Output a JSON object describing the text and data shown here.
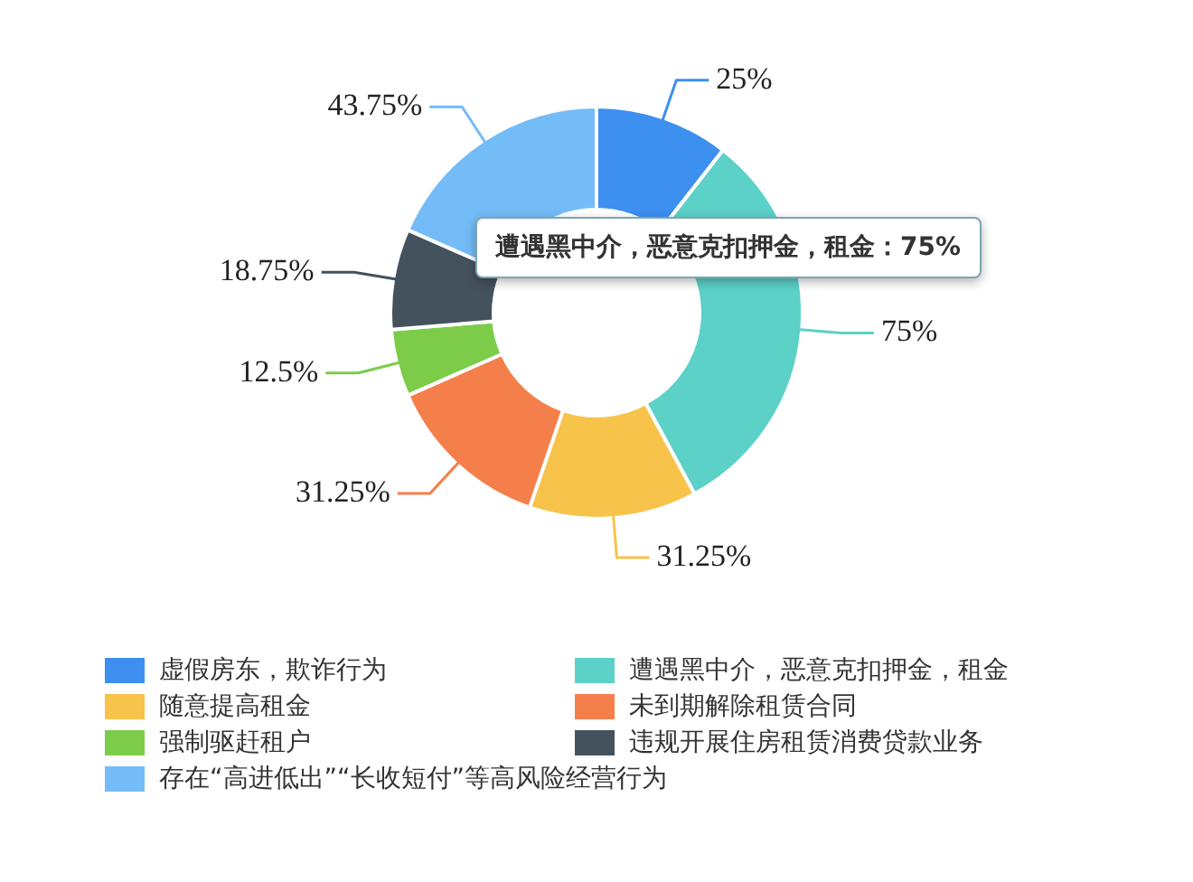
{
  "chart_data": {
    "type": "donut",
    "categories": [
      "虚假房东，欺诈行为",
      "遭遇黑中介，恶意克扣押金，租金",
      "随意提高租金",
      "未到期解除租赁合同",
      "强制驱赶租户",
      "违规开展住房租赁消费贷款业务",
      "存在“高进低出”“长收短付”等高风险经营行为"
    ],
    "values": [
      25,
      75,
      31.25,
      31.25,
      12.5,
      18.75,
      43.75
    ],
    "value_labels": [
      "25%",
      "75%",
      "31.25%",
      "31.25%",
      "12.5%",
      "18.75%",
      "43.75%"
    ],
    "colors": [
      "#3d8ff0",
      "#5bd1c8",
      "#f7c34a",
      "#f57f4b",
      "#7ccc4a",
      "#44525e",
      "#74bcf7"
    ],
    "annotations": [
      "遭遇黑中介，恶意克扣押金，租金：75%"
    ],
    "legend": "bottom"
  }
}
